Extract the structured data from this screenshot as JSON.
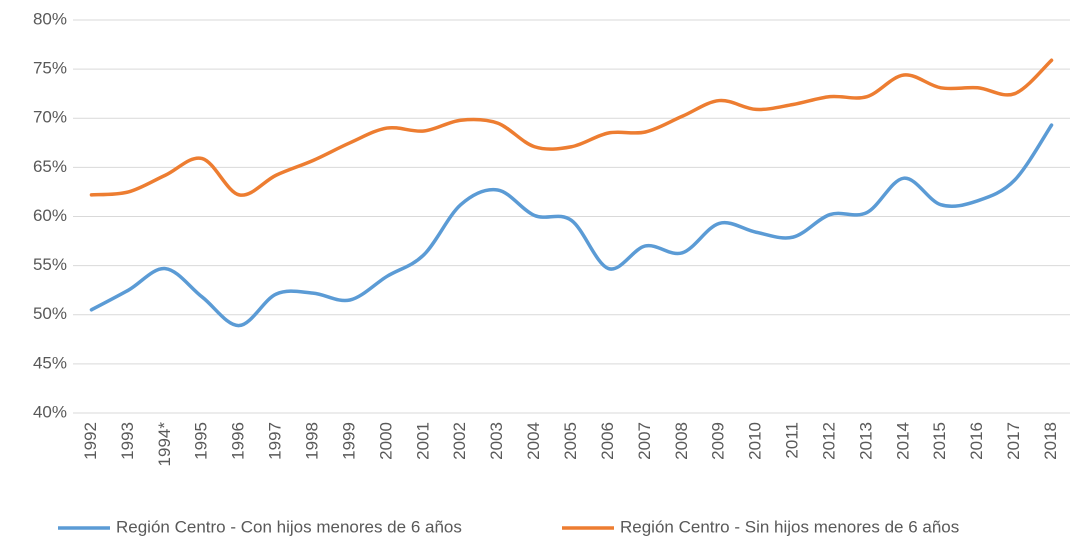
{
  "chart_data": {
    "type": "line",
    "categories": [
      "1992",
      "1993",
      "1994*",
      "1995",
      "1996",
      "1997",
      "1998",
      "1999",
      "2000",
      "2001",
      "2002",
      "2003",
      "2004",
      "2005",
      "2006",
      "2007",
      "2008",
      "2009",
      "2010",
      "2011",
      "2012",
      "2013",
      "2014",
      "2015",
      "2016",
      "2017",
      "2018"
    ],
    "series": [
      {
        "name": "Región Centro - Con hijos menores de 6 años",
        "color": "#5b9bd5",
        "values": [
          50.5,
          52.5,
          54.7,
          51.8,
          48.9,
          52.1,
          52.2,
          51.5,
          53.9,
          56.1,
          61.2,
          62.7,
          60.1,
          59.6,
          54.7,
          57.0,
          56.3,
          59.3,
          58.4,
          57.9,
          60.2,
          60.4,
          63.9,
          61.2,
          61.6,
          63.7,
          69.3
        ]
      },
      {
        "name": "Región Centro - Sin hijos menores de 6 años",
        "color": "#ed7d31",
        "values": [
          62.2,
          62.5,
          64.2,
          65.9,
          62.2,
          64.2,
          65.7,
          67.5,
          69.0,
          68.7,
          69.8,
          69.5,
          67.1,
          67.1,
          68.5,
          68.6,
          70.2,
          71.8,
          70.9,
          71.4,
          72.2,
          72.2,
          74.4,
          73.1,
          73.1,
          72.5,
          75.9
        ]
      }
    ],
    "ylim": [
      40,
      80
    ],
    "yticks": [
      {
        "value": 40,
        "label": "40%"
      },
      {
        "value": 45,
        "label": "45%"
      },
      {
        "value": 50,
        "label": "50%"
      },
      {
        "value": 55,
        "label": "55%"
      },
      {
        "value": 60,
        "label": "60%"
      },
      {
        "value": 65,
        "label": "65%"
      },
      {
        "value": 70,
        "label": "70%"
      },
      {
        "value": 75,
        "label": "75%"
      },
      {
        "value": 80,
        "label": "80%"
      }
    ],
    "grid": true,
    "legend": "bottom"
  }
}
